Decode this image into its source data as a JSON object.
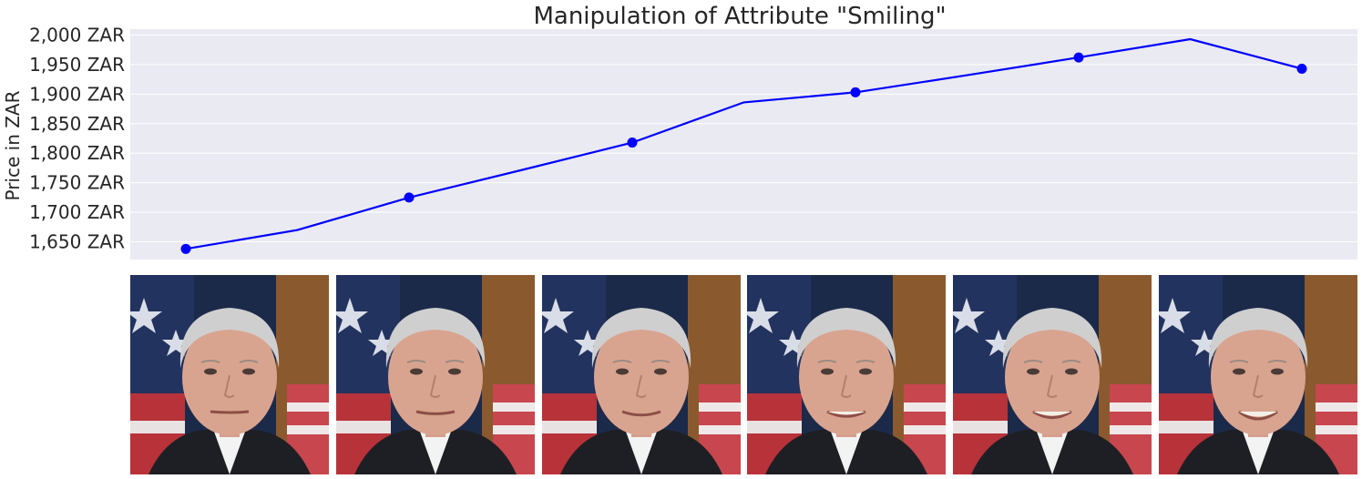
{
  "chart_data": {
    "type": "line",
    "title": "Manipulation of Attribute \"Smiling\"",
    "xlabel": "",
    "ylabel": "Price in ZAR",
    "ylim": [
      1620,
      2010
    ],
    "yticks": [
      1650,
      1700,
      1750,
      1800,
      1850,
      1900,
      1950,
      2000
    ],
    "ytick_labels": [
      "1,650 ZAR",
      "1,700 ZAR",
      "1,750 ZAR",
      "1,800 ZAR",
      "1,850 ZAR",
      "1,900 ZAR",
      "1,950 ZAR",
      "2,000 ZAR"
    ],
    "grid": true,
    "xlim": [
      0,
      10
    ],
    "series": [
      {
        "color": "#0000ff",
        "x": [
          0,
          1,
          2,
          3,
          4,
          5,
          6,
          7,
          8,
          9,
          10
        ],
        "y": [
          1638,
          1670,
          1725,
          1771,
          1818,
          1886,
          1903,
          1932,
          1962,
          1993,
          1943
        ],
        "marker_indices": [
          0,
          2,
          4,
          6,
          8,
          10
        ]
      }
    ]
  },
  "images": {
    "count": 6,
    "subject": "portrait-photo",
    "smile_levels": [
      0.0,
      0.2,
      0.4,
      0.6,
      0.8,
      1.0
    ]
  },
  "colors": {
    "plot_bg": "#eaeaf2",
    "grid": "#ffffff",
    "line": "#0000ff",
    "text": "#262626"
  }
}
